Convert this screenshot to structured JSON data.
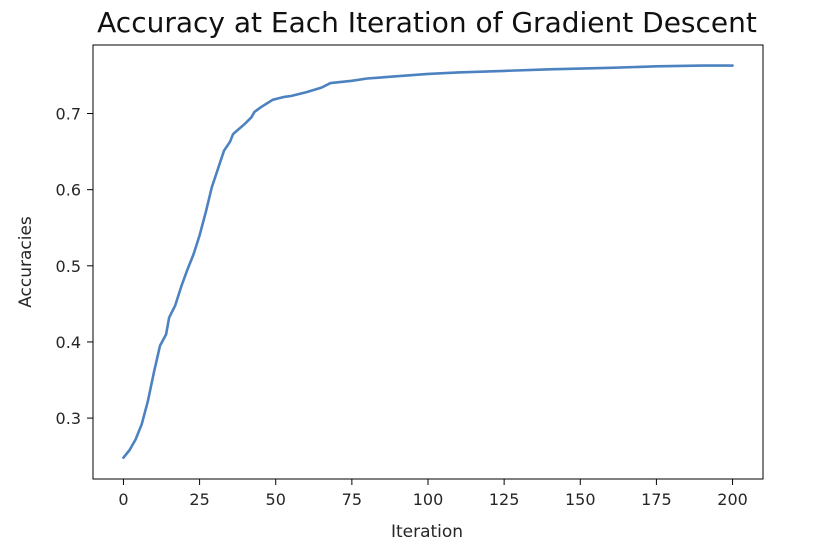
{
  "chart_data": {
    "type": "line",
    "title": "Accuracy at Each Iteration of Gradient Descent",
    "xlabel": "Iteration",
    "ylabel": "Accuracies",
    "xlim": [
      -10,
      210
    ],
    "ylim": [
      0.22,
      0.79
    ],
    "xticks": [
      0,
      25,
      50,
      75,
      100,
      125,
      150,
      175,
      200
    ],
    "yticks": [
      0.3,
      0.4,
      0.5,
      0.6,
      0.7
    ],
    "grid": false,
    "legend": "none",
    "line_color": "#4c82c0",
    "series": [
      {
        "x": [
          0,
          2,
          4,
          6,
          8,
          10,
          12,
          14,
          15,
          17,
          19,
          21,
          23,
          25,
          27,
          29,
          31,
          33,
          35,
          36,
          38,
          40,
          42,
          43,
          45,
          47,
          49,
          51,
          53,
          55,
          57,
          60,
          65,
          68,
          75,
          80,
          90,
          100,
          110,
          125,
          140,
          150,
          160,
          175,
          190,
          200
        ],
        "y": [
          0.248,
          0.258,
          0.272,
          0.292,
          0.322,
          0.36,
          0.395,
          0.41,
          0.432,
          0.448,
          0.473,
          0.495,
          0.515,
          0.54,
          0.57,
          0.603,
          0.627,
          0.651,
          0.663,
          0.673,
          0.68,
          0.687,
          0.695,
          0.702,
          0.708,
          0.713,
          0.718,
          0.72,
          0.722,
          0.723,
          0.725,
          0.728,
          0.734,
          0.74,
          0.743,
          0.746,
          0.749,
          0.752,
          0.754,
          0.756,
          0.758,
          0.759,
          0.76,
          0.762,
          0.763,
          0.763
        ]
      }
    ]
  }
}
